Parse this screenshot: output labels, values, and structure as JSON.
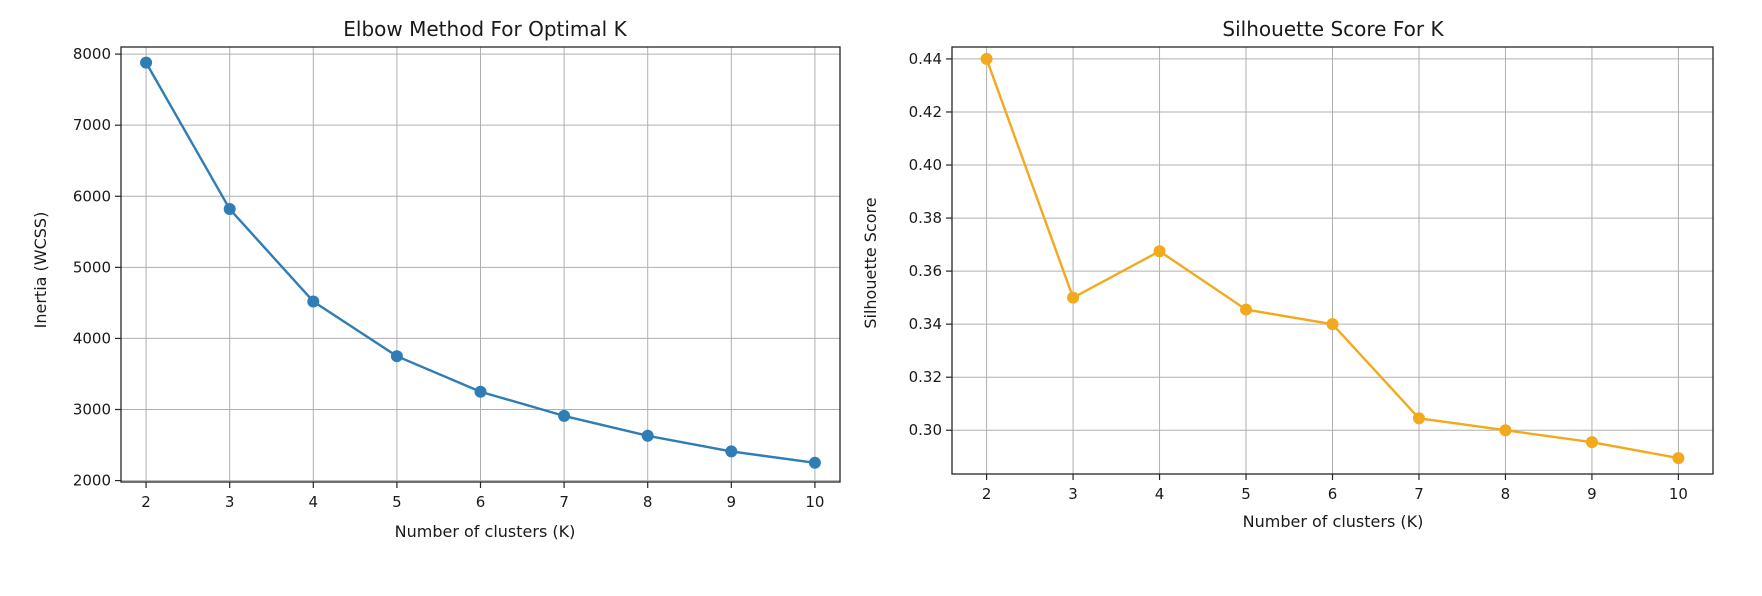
{
  "chart_data": [
    {
      "type": "line",
      "title": "Elbow Method For Optimal K",
      "xlabel": "Number of clusters (K)",
      "ylabel": "Inertia (WCSS)",
      "x": [
        2,
        3,
        4,
        5,
        6,
        7,
        8,
        9,
        10
      ],
      "series": [
        {
          "values": [
            7880,
            5820,
            4520,
            3750,
            3250,
            2910,
            2630,
            2410,
            2250
          ]
        }
      ],
      "xlim": [
        1.7,
        10.3
      ],
      "ylim": [
        1980,
        8100
      ],
      "xticks": [
        2,
        3,
        4,
        5,
        6,
        7,
        8,
        9,
        10
      ],
      "yticks": [
        2000,
        3000,
        4000,
        5000,
        6000,
        7000,
        8000
      ],
      "xtick_labels": [
        "2",
        "3",
        "4",
        "5",
        "6",
        "7",
        "8",
        "9",
        "10"
      ],
      "ytick_labels": [
        "2000",
        "3000",
        "4000",
        "5000",
        "6000",
        "7000",
        "8000"
      ],
      "grid": true,
      "marker": "circle",
      "color": "#2e7db5"
    },
    {
      "type": "line",
      "title": "Silhouette Score For K",
      "xlabel": "Number of clusters (K)",
      "ylabel": "Silhouette Score",
      "x": [
        2,
        3,
        4,
        5,
        6,
        7,
        8,
        9,
        10
      ],
      "series": [
        {
          "values": [
            0.44,
            0.35,
            0.3675,
            0.3455,
            0.34,
            0.3045,
            0.3,
            0.2955,
            0.2895
          ]
        }
      ],
      "xlim": [
        1.6,
        10.4
      ],
      "ylim": [
        0.2835,
        0.4445
      ],
      "xticks": [
        2,
        3,
        4,
        5,
        6,
        7,
        8,
        9,
        10
      ],
      "yticks": [
        0.3,
        0.32,
        0.34,
        0.36,
        0.38,
        0.4,
        0.42,
        0.44
      ],
      "xtick_labels": [
        "2",
        "3",
        "4",
        "5",
        "6",
        "7",
        "8",
        "9",
        "10"
      ],
      "ytick_labels": [
        "0.30",
        "0.32",
        "0.34",
        "0.36",
        "0.38",
        "0.40",
        "0.42",
        "0.44"
      ],
      "grid": true,
      "marker": "circle",
      "color": "#f2a91c"
    }
  ]
}
